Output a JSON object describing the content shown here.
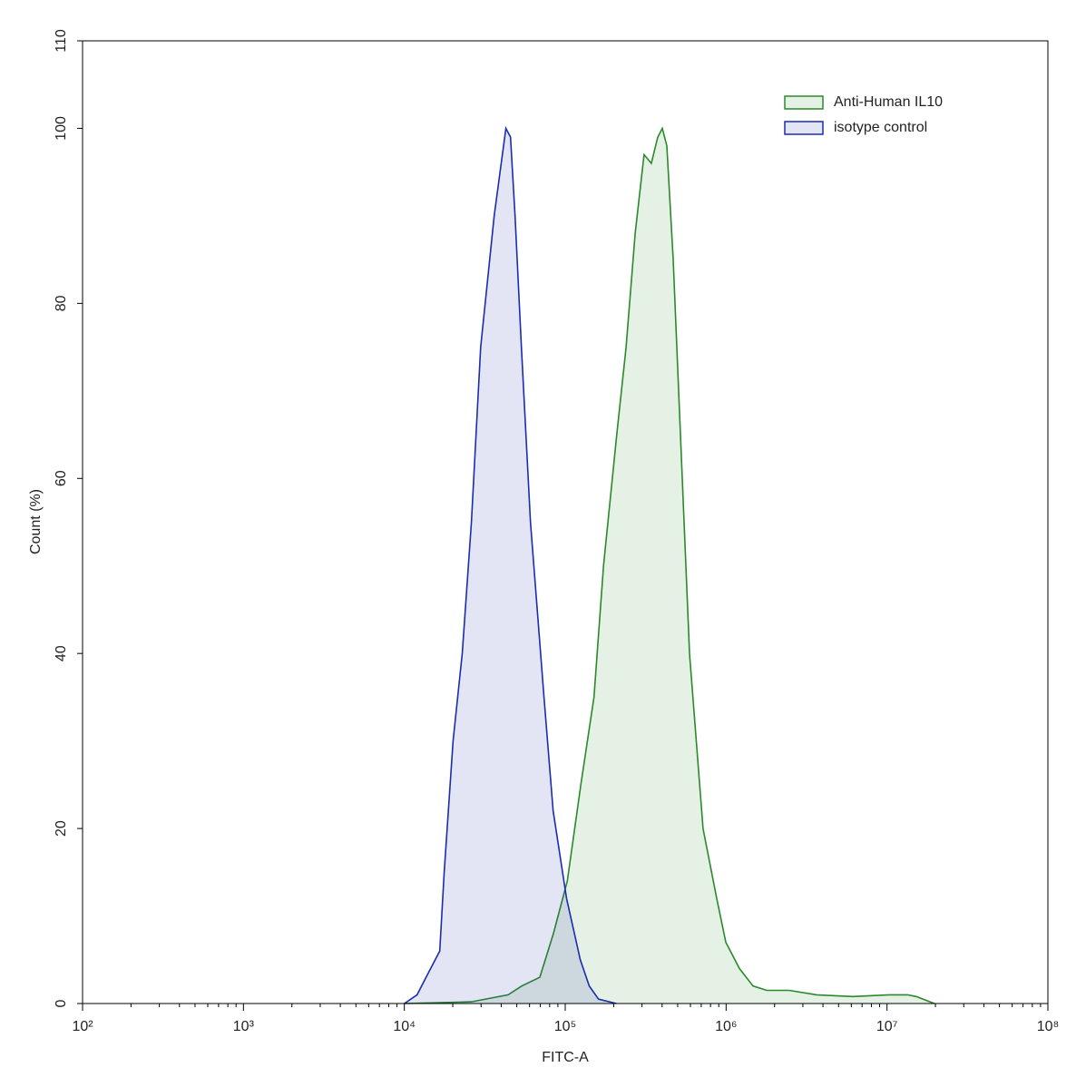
{
  "chart_data": {
    "type": "histogram-overlay",
    "x_label": "FITC-A",
    "y_label": "Count  (%)",
    "xscale": "log",
    "xlim": [
      100,
      100000000
    ],
    "xticks": [
      {
        "value": 100,
        "label": "10²"
      },
      {
        "value": 1000,
        "label": "10³"
      },
      {
        "value": 10000,
        "label": "10⁴"
      },
      {
        "value": 100000,
        "label": "10⁵"
      },
      {
        "value": 1000000,
        "label": "10⁶"
      },
      {
        "value": 10000000,
        "label": "10⁷"
      },
      {
        "value": 100000000,
        "label": "10⁸"
      }
    ],
    "ylim": [
      0,
      110
    ],
    "yticks": [
      0,
      20,
      40,
      60,
      80,
      100,
      110
    ],
    "legend": "upper right",
    "series": [
      {
        "name": "Anti-Human IL10",
        "color": "#2a8a2a",
        "x": [
          10000,
          26100,
          44200,
          53600,
          69500,
          84500,
          103000,
          125000,
          151000,
          173000,
          209000,
          239000,
          272000,
          309000,
          343000,
          376000,
          401000,
          428000,
          469000,
          520000,
          592000,
          719000,
          874000,
          996000,
          1210000,
          1470000,
          1790000,
          2470000,
          3650000,
          6130000,
          10300000,
          13400000,
          15200000,
          19700000
        ],
        "values": [
          0,
          0.2,
          1,
          2,
          3,
          8,
          14,
          25,
          35,
          50,
          65,
          75,
          88,
          97,
          96,
          99,
          100,
          98,
          85,
          65,
          40,
          20,
          12,
          7,
          4,
          2,
          1.5,
          1.5,
          1,
          0.8,
          1,
          1,
          0.8,
          0
        ]
      },
      {
        "name": "isotype control",
        "color": "#1a2db0",
        "x": [
          10000,
          12000,
          13650,
          16600,
          17700,
          20100,
          22900,
          26100,
          29800,
          36200,
          42800,
          45700,
          48800,
          53400,
          60800,
          73800,
          84100,
          102000,
          124000,
          141000,
          161000,
          208000
        ],
        "values": [
          0,
          1,
          3,
          6,
          15,
          30,
          40,
          55,
          75,
          90,
          100,
          99,
          90,
          75,
          55,
          35,
          22,
          12,
          5,
          2,
          0.5,
          0
        ]
      }
    ]
  }
}
